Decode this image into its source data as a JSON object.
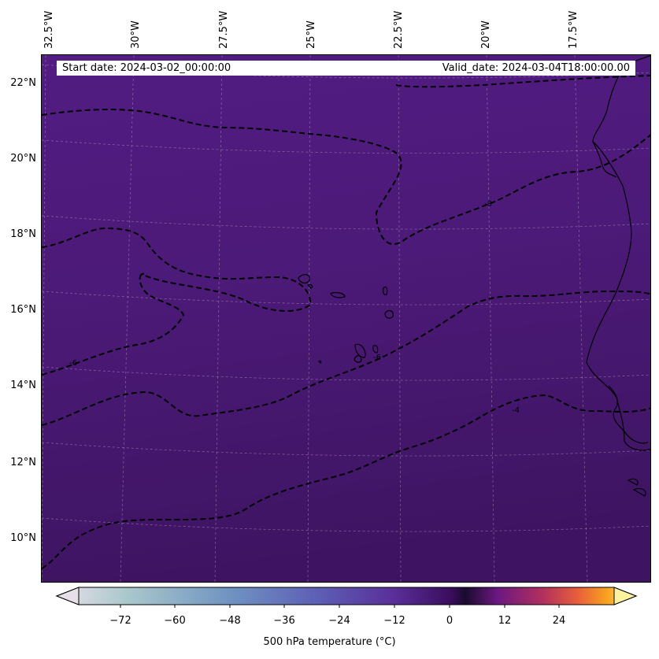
{
  "header": {
    "start_date": "Start date: 2024-03-02_00:00:00",
    "valid_date": "Valid_date: 2024-03-04T18:00:00.00"
  },
  "map": {
    "longitude_labels": [
      "32.5°W",
      "30°W",
      "27.5°W",
      "25°W",
      "22.5°W",
      "20°W",
      "17.5°W"
    ],
    "latitude_labels": [
      "22°N",
      "20°N",
      "18°N",
      "16°N",
      "14°N",
      "12°N",
      "10°N"
    ],
    "contour_labels": [
      "-8",
      "-6",
      "-6",
      "-4"
    ],
    "field_color_top": "#521b81",
    "field_color_bottom": "#3f1464",
    "coastline_color": "#000000",
    "gridline_color": "#b9a7c9"
  },
  "colorbar": {
    "ticks": [
      "−72",
      "−60",
      "−48",
      "−36",
      "−24",
      "−12",
      "0",
      "12",
      "24"
    ],
    "label": "500 hPa temperature (°C)",
    "colormap_stops": [
      "#e8e0e8",
      "#aac8cc",
      "#6f93c1",
      "#5d5fb5",
      "#5a2f9a",
      "#3a0d5d",
      "#1a0b2e",
      "#6a1880",
      "#b3305d",
      "#e8603a",
      "#f9a21e",
      "#fbf19f"
    ]
  }
}
